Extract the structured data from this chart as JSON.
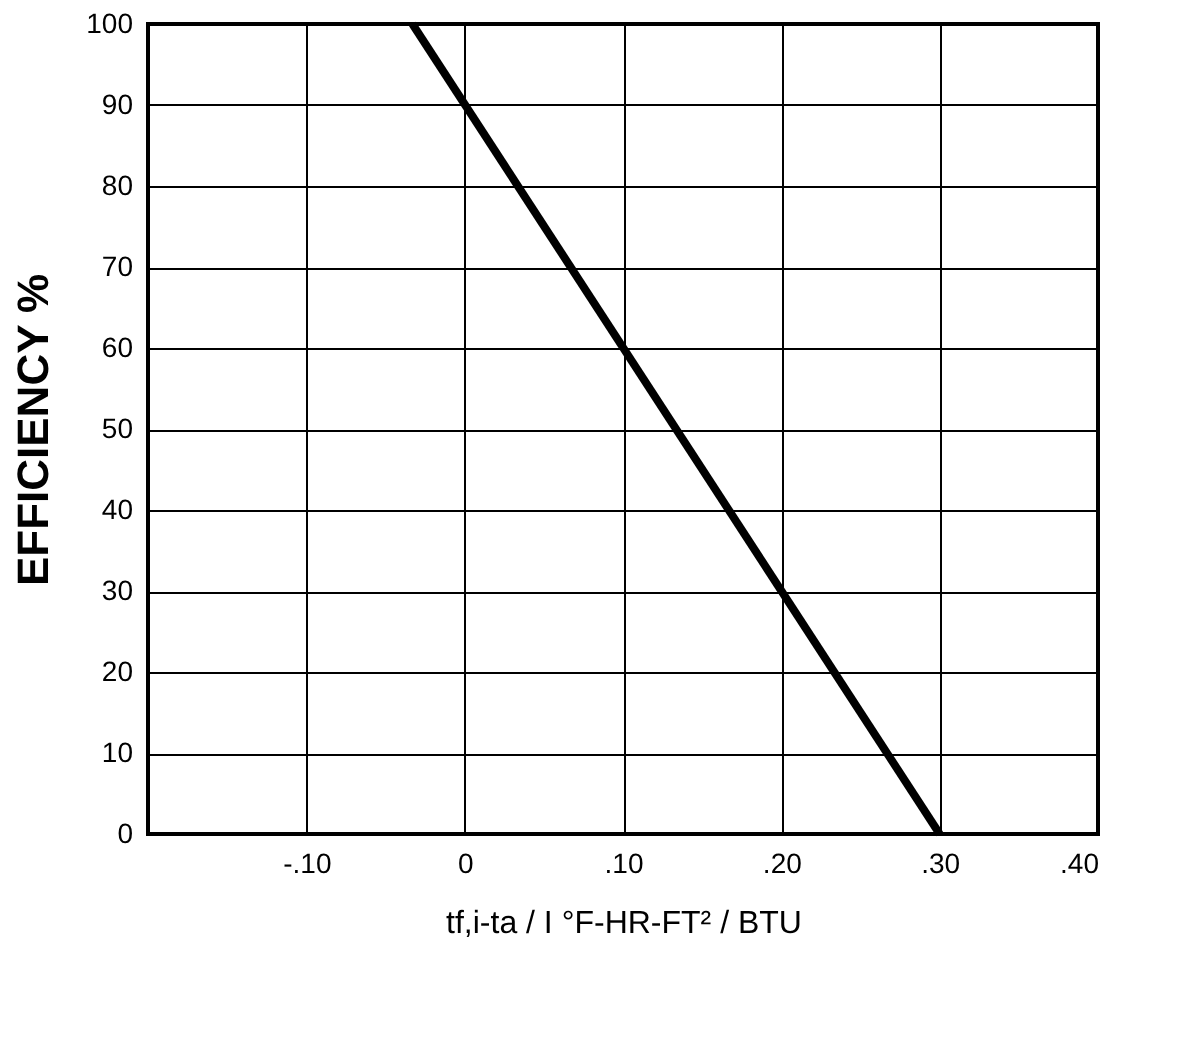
{
  "chart_data": {
    "type": "line",
    "ylabel": "EFFICIENCY %",
    "xlabel": "tf,i-ta / I    °F-HR-FT² / BTU",
    "series": [
      {
        "color": "#000000",
        "x": [
          -0.033,
          0.3
        ],
        "values": [
          100,
          0
        ]
      }
    ],
    "xlim": [
      -0.2,
      0.4
    ],
    "xticks": [
      {
        "value": -0.2,
        "label": null
      },
      {
        "value": -0.1,
        "label": "-.10"
      },
      0,
      {
        "value": 0.1,
        "label": ".10"
      },
      {
        "value": 0.2,
        "label": ".20"
      },
      {
        "value": 0.3,
        "label": ".30"
      },
      {
        "value": 0.4,
        "label": ".40"
      }
    ],
    "ylim": [
      0,
      100
    ],
    "yticks": [
      0,
      10,
      20,
      30,
      40,
      50,
      60,
      70,
      80,
      90,
      100
    ],
    "grid": true,
    "marker": "none",
    "line_style": "solid"
  }
}
